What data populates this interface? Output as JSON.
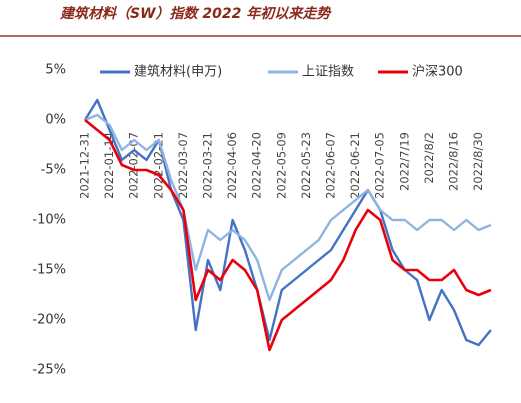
{
  "chart_data": {
    "type": "line",
    "title": "建筑材料（SW）指数 2022 年初以来走势",
    "categories": [
      "2021-12-31",
      null,
      "2022-01-14",
      null,
      "2022-02-07",
      null,
      "2022-02-21",
      null,
      "2022-03-07",
      null,
      "2022-03-21",
      null,
      "2022-04-06",
      null,
      "2022-04-20",
      null,
      "2022-05-09",
      null,
      "2022-05-23",
      null,
      "2022-06-07",
      null,
      "2022-06-21",
      null,
      "2022-07-05",
      null,
      "2022/7/19",
      null,
      "2022/8/2",
      null,
      "2022/8/16",
      null,
      "2022/8/30",
      null
    ],
    "series": [
      {
        "name": "建筑材料(申万)",
        "color": "#4472c4",
        "values": [
          0,
          2,
          -1,
          -4,
          -3,
          -4,
          -2,
          -7,
          -10,
          -21,
          -14,
          -17,
          -10,
          -13,
          -17,
          -22,
          -17,
          -16,
          -15,
          -14,
          -13,
          -11,
          -9,
          -7,
          -9,
          -13,
          -15,
          -16,
          -20,
          -17,
          -19,
          -22,
          -22.5,
          -21
        ]
      },
      {
        "name": "上证指数",
        "color": "#8eb4e3",
        "values": [
          0,
          0.5,
          -0.5,
          -3,
          -2,
          -3,
          -2,
          -6,
          -9,
          -15,
          -11,
          -12,
          -11,
          -12,
          -14,
          -18,
          -15,
          -14,
          -13,
          -12,
          -10,
          -9,
          -8,
          -7,
          -9,
          -10,
          -10,
          -11,
          -10,
          -10,
          -11,
          -10,
          -11,
          -10.5
        ]
      },
      {
        "name": "沪深300",
        "color": "#e8000b",
        "values": [
          0,
          -1,
          -2,
          -4.5,
          -5,
          -5,
          -5.5,
          -7,
          -9,
          -18,
          -15,
          -16,
          -14,
          -15,
          -17,
          -23,
          -20,
          -19,
          -18,
          -17,
          -16,
          -14,
          -11,
          -9,
          -10,
          -14,
          -15,
          -15,
          -16,
          -16,
          -15,
          -17,
          -17.5,
          -17
        ]
      }
    ],
    "ylim": [
      -25,
      5
    ],
    "yticks": [
      {
        "value": 5,
        "label": "5%"
      },
      {
        "value": 0,
        "label": "0%"
      },
      {
        "value": -5,
        "label": "-5%"
      },
      {
        "value": -10,
        "label": "-10%"
      },
      {
        "value": -15,
        "label": "-15%"
      },
      {
        "value": -20,
        "label": "-20%"
      },
      {
        "value": -25,
        "label": "-25%"
      }
    ]
  }
}
